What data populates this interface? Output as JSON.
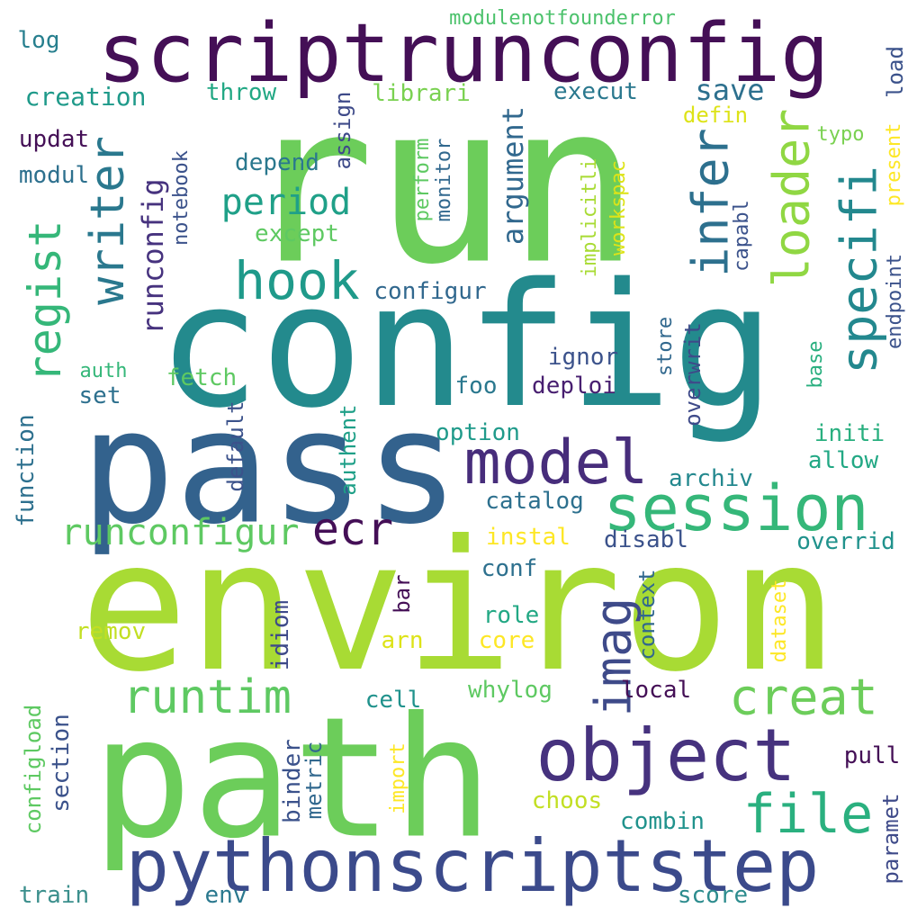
{
  "words": [
    {
      "text": "run",
      "color": "#6ccd5a",
      "vertical": false
    },
    {
      "text": "config",
      "color": "#238a8d",
      "vertical": false
    },
    {
      "text": "environ",
      "color": "#a8db34",
      "vertical": false
    },
    {
      "text": "pass",
      "color": "#33628d",
      "vertical": false
    },
    {
      "text": "path",
      "color": "#6ccd5a",
      "vertical": false
    },
    {
      "text": "scriptrunconfig",
      "color": "#440f56",
      "vertical": false
    },
    {
      "text": "pythonscriptstep",
      "color": "#3b4a8b",
      "vertical": false
    },
    {
      "text": "object",
      "color": "#46327e",
      "vertical": false
    },
    {
      "text": "session",
      "color": "#35b779",
      "vertical": false
    },
    {
      "text": "model",
      "color": "#472d7b",
      "vertical": false
    },
    {
      "text": "hook",
      "color": "#1f9a8a",
      "vertical": false
    },
    {
      "text": "runtim",
      "color": "#5ec962",
      "vertical": false
    },
    {
      "text": "creat",
      "color": "#6ccd5a",
      "vertical": false
    },
    {
      "text": "file",
      "color": "#2ab07f",
      "vertical": false
    },
    {
      "text": "ecr",
      "color": "#440f56",
      "vertical": false
    },
    {
      "text": "runconfigur",
      "color": "#5ec962",
      "vertical": false
    },
    {
      "text": "period",
      "color": "#1fa088",
      "vertical": false
    },
    {
      "text": "save",
      "color": "#2d708e",
      "vertical": false
    },
    {
      "text": "writer",
      "color": "#2a788e",
      "vertical": true
    },
    {
      "text": "infer",
      "color": "#2d708e",
      "vertical": true
    },
    {
      "text": "loader",
      "color": "#90d743",
      "vertical": true
    },
    {
      "text": "specifi",
      "color": "#23888e",
      "vertical": true
    },
    {
      "text": "regist",
      "color": "#35b779",
      "vertical": true
    },
    {
      "text": "imag",
      "color": "#3e4a89",
      "vertical": true
    },
    {
      "text": "runconfig",
      "color": "#46327e",
      "vertical": true
    },
    {
      "text": "argument",
      "color": "#31688e",
      "vertical": true
    },
    {
      "text": "log",
      "color": "#277f8e",
      "vertical": false
    },
    {
      "text": "creation",
      "color": "#1f9a8a",
      "vertical": false
    },
    {
      "text": "updat",
      "color": "#440f56",
      "vertical": false
    },
    {
      "text": "modul",
      "color": "#2d708e",
      "vertical": false
    },
    {
      "text": "throw",
      "color": "#22a884",
      "vertical": false
    },
    {
      "text": "librari",
      "color": "#7ad151",
      "vertical": false
    },
    {
      "text": "execut",
      "color": "#2a788e",
      "vertical": false
    },
    {
      "text": "defin",
      "color": "#dde318",
      "vertical": false
    },
    {
      "text": "typo",
      "color": "#7ad151",
      "vertical": false
    },
    {
      "text": "depend",
      "color": "#2a788e",
      "vertical": false
    },
    {
      "text": "except",
      "color": "#5ec962",
      "vertical": false
    },
    {
      "text": "configur",
      "color": "#31688e",
      "vertical": false
    },
    {
      "text": "ignor",
      "color": "#3b528b",
      "vertical": false
    },
    {
      "text": "deploi",
      "color": "#481f70",
      "vertical": false
    },
    {
      "text": "foo",
      "color": "#2a788e",
      "vertical": false
    },
    {
      "text": "fetch",
      "color": "#5ec962",
      "vertical": false
    },
    {
      "text": "auth",
      "color": "#35b779",
      "vertical": false
    },
    {
      "text": "set",
      "color": "#2d708e",
      "vertical": false
    },
    {
      "text": "option",
      "color": "#1f9a8a",
      "vertical": false
    },
    {
      "text": "archiv",
      "color": "#23888e",
      "vertical": false
    },
    {
      "text": "initi",
      "color": "#29af7f",
      "vertical": false
    },
    {
      "text": "allow",
      "color": "#22a884",
      "vertical": false
    },
    {
      "text": "catalog",
      "color": "#2d708e",
      "vertical": false
    },
    {
      "text": "instal",
      "color": "#fde725",
      "vertical": false
    },
    {
      "text": "disabl",
      "color": "#3b528b",
      "vertical": false
    },
    {
      "text": "overrid",
      "color": "#20928c",
      "vertical": false
    },
    {
      "text": "conf",
      "color": "#2d708e",
      "vertical": false
    },
    {
      "text": "role",
      "color": "#22a884",
      "vertical": false
    },
    {
      "text": "remov",
      "color": "#c2df23",
      "vertical": false
    },
    {
      "text": "arn",
      "color": "#dde318",
      "vertical": false
    },
    {
      "text": "core",
      "color": "#fde725",
      "vertical": false
    },
    {
      "text": "whylog",
      "color": "#5ec962",
      "vertical": false
    },
    {
      "text": "local",
      "color": "#440f56",
      "vertical": false
    },
    {
      "text": "cell",
      "color": "#20928c",
      "vertical": false
    },
    {
      "text": "pull",
      "color": "#440f56",
      "vertical": false
    },
    {
      "text": "choos",
      "color": "#c2df23",
      "vertical": false
    },
    {
      "text": "combin",
      "color": "#20928c",
      "vertical": false
    },
    {
      "text": "train",
      "color": "#3b8f8c",
      "vertical": false
    },
    {
      "text": "env",
      "color": "#2a788e",
      "vertical": false
    },
    {
      "text": "score",
      "color": "#2d8c8e",
      "vertical": false
    },
    {
      "text": "modulenotfounderror",
      "color": "#4cc26c",
      "vertical": false
    },
    {
      "text": "load",
      "color": "#3b528b",
      "vertical": true
    },
    {
      "text": "assign",
      "color": "#3e4a89",
      "vertical": true
    },
    {
      "text": "notebook",
      "color": "#3b528b",
      "vertical": true
    },
    {
      "text": "perform",
      "color": "#5ec962",
      "vertical": true
    },
    {
      "text": "monitor",
      "color": "#31688e",
      "vertical": true
    },
    {
      "text": "implicitli",
      "color": "#a8db34",
      "vertical": true
    },
    {
      "text": "workspac",
      "color": "#dde318",
      "vertical": true
    },
    {
      "text": "capabl",
      "color": "#3b528b",
      "vertical": true
    },
    {
      "text": "present",
      "color": "#fde725",
      "vertical": true
    },
    {
      "text": "endpoint",
      "color": "#3b528b",
      "vertical": true
    },
    {
      "text": "store",
      "color": "#31688e",
      "vertical": true
    },
    {
      "text": "overwrit",
      "color": "#3e4a89",
      "vertical": true
    },
    {
      "text": "base",
      "color": "#29af7f",
      "vertical": true
    },
    {
      "text": "default",
      "color": "#3b528b",
      "vertical": true
    },
    {
      "text": "authent",
      "color": "#1fa088",
      "vertical": true
    },
    {
      "text": "function",
      "color": "#2d708e",
      "vertical": true
    },
    {
      "text": "context",
      "color": "#31688e",
      "vertical": true
    },
    {
      "text": "bar",
      "color": "#440f56",
      "vertical": true
    },
    {
      "text": "idiom",
      "color": "#3e4a89",
      "vertical": true
    },
    {
      "text": "dataset",
      "color": "#fde725",
      "vertical": true
    },
    {
      "text": "section",
      "color": "#3b528b",
      "vertical": true
    },
    {
      "text": "configload",
      "color": "#5ec962",
      "vertical": true
    },
    {
      "text": "binder",
      "color": "#3b528b",
      "vertical": true
    },
    {
      "text": "metric",
      "color": "#31688e",
      "vertical": true
    },
    {
      "text": "import",
      "color": "#fde725",
      "vertical": true
    },
    {
      "text": "paramet",
      "color": "#3e4a89",
      "vertical": true
    }
  ]
}
